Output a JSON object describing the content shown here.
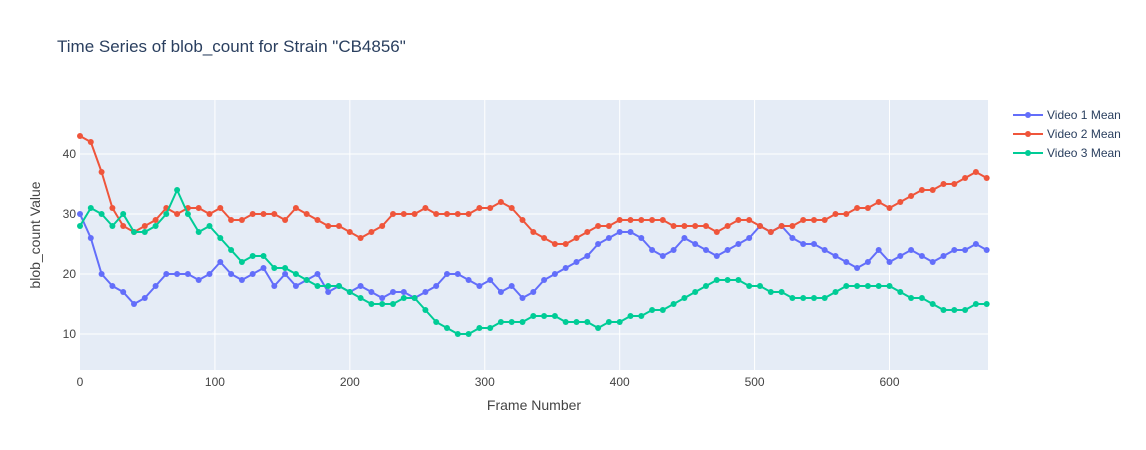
{
  "chart_data": {
    "type": "line",
    "title": "Time Series of blob_count for Strain \"CB4856\"",
    "xlabel": "Frame Number",
    "ylabel": "blob_count Value",
    "xlim": [
      0,
      673
    ],
    "ylim": [
      4,
      49
    ],
    "xticks": [
      0,
      100,
      200,
      300,
      400,
      500,
      600
    ],
    "yticks": [
      10,
      20,
      30,
      40
    ],
    "grid": true,
    "legend_position": "top-right",
    "plot_bg": "#e5ecf6",
    "x": [
      0,
      8,
      16,
      24,
      32,
      40,
      48,
      56,
      64,
      72,
      80,
      88,
      96,
      104,
      112,
      120,
      128,
      136,
      144,
      152,
      160,
      168,
      176,
      184,
      192,
      200,
      208,
      216,
      224,
      232,
      240,
      248,
      256,
      264,
      272,
      280,
      288,
      296,
      304,
      312,
      320,
      328,
      336,
      344,
      352,
      360,
      368,
      376,
      384,
      392,
      400,
      408,
      416,
      424,
      432,
      440,
      448,
      456,
      464,
      472,
      480,
      488,
      496,
      504,
      512,
      520,
      528,
      536,
      544,
      552,
      560,
      568,
      576,
      584,
      592,
      600,
      608,
      616,
      624,
      632,
      640,
      648,
      656,
      664,
      672
    ],
    "series": [
      {
        "name": "Video 1 Mean",
        "color": "#636efa",
        "values": [
          30,
          26,
          20,
          18,
          17,
          15,
          16,
          18,
          20,
          20,
          20,
          19,
          20,
          22,
          20,
          19,
          20,
          21,
          18,
          20,
          18,
          19,
          20,
          17,
          18,
          17,
          18,
          17,
          16,
          17,
          17,
          16,
          17,
          18,
          20,
          20,
          19,
          18,
          19,
          17,
          18,
          16,
          17,
          19,
          20,
          21,
          22,
          23,
          25,
          26,
          27,
          27,
          26,
          24,
          23,
          24,
          26,
          25,
          24,
          23,
          24,
          25,
          26,
          28,
          27,
          28,
          26,
          25,
          25,
          24,
          23,
          22,
          21,
          22,
          24,
          22,
          23,
          24,
          23,
          22,
          23,
          24,
          24,
          25,
          24
        ]
      },
      {
        "name": "Video 2 Mean",
        "color": "#ef553b",
        "values": [
          43,
          42,
          37,
          31,
          28,
          27,
          28,
          29,
          31,
          30,
          31,
          31,
          30,
          31,
          29,
          29,
          30,
          30,
          30,
          29,
          31,
          30,
          29,
          28,
          28,
          27,
          26,
          27,
          28,
          30,
          30,
          30,
          31,
          30,
          30,
          30,
          30,
          31,
          31,
          32,
          31,
          29,
          27,
          26,
          25,
          25,
          26,
          27,
          28,
          28,
          29,
          29,
          29,
          29,
          29,
          28,
          28,
          28,
          28,
          27,
          28,
          29,
          29,
          28,
          27,
          28,
          28,
          29,
          29,
          29,
          30,
          30,
          31,
          31,
          32,
          31,
          32,
          33,
          34,
          34,
          35,
          35,
          36,
          37,
          36
        ]
      },
      {
        "name": "Video 3 Mean",
        "color": "#00cc96",
        "values": [
          28,
          31,
          30,
          28,
          30,
          27,
          27,
          28,
          30,
          34,
          30,
          27,
          28,
          26,
          24,
          22,
          23,
          23,
          21,
          21,
          20,
          19,
          18,
          18,
          18,
          17,
          16,
          15,
          15,
          15,
          16,
          16,
          14,
          12,
          11,
          10,
          10,
          11,
          11,
          12,
          12,
          12,
          13,
          13,
          13,
          12,
          12,
          12,
          11,
          12,
          12,
          13,
          13,
          14,
          14,
          15,
          16,
          17,
          18,
          19,
          19,
          19,
          18,
          18,
          17,
          17,
          16,
          16,
          16,
          16,
          17,
          18,
          18,
          18,
          18,
          18,
          17,
          16,
          16,
          15,
          14,
          14,
          14,
          15,
          15
        ]
      }
    ]
  }
}
